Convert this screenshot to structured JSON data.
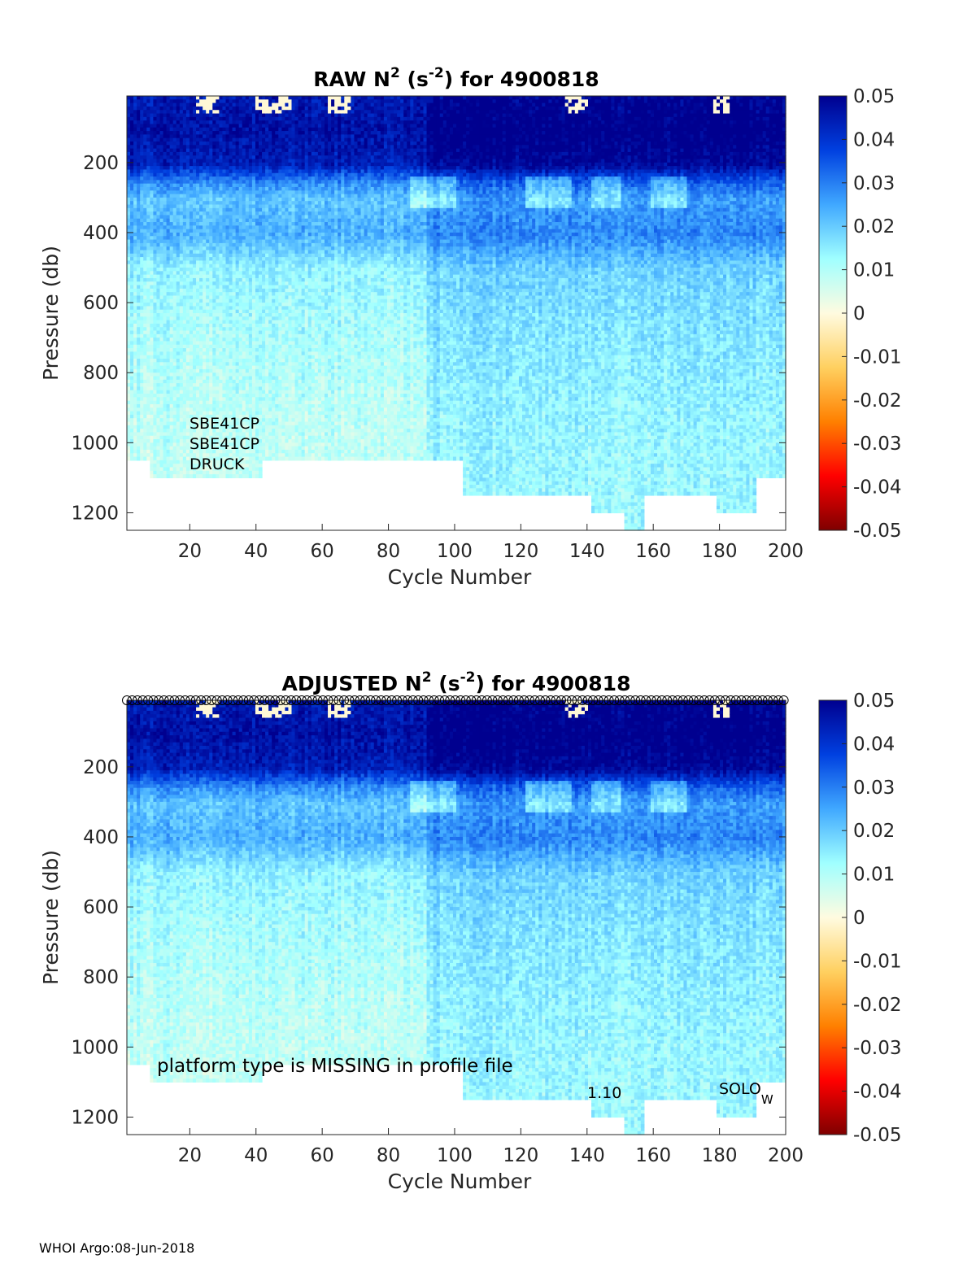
{
  "chart_data": [
    {
      "type": "heatmap",
      "title_prefix": "RAW N",
      "title_suffix": "for 4900818",
      "title_exp": "2",
      "title_unit_a": "(s",
      "title_unit_exp": "-2",
      "title_unit_b": ")",
      "xlabel": "Cycle Number",
      "ylabel": "Pressure (db)",
      "xlim": [
        1,
        200
      ],
      "ylim": [
        10,
        1250
      ],
      "xticks": [
        "20",
        "40",
        "60",
        "80",
        "100",
        "120",
        "140",
        "160",
        "180",
        "200"
      ],
      "yticks": [
        "200",
        "400",
        "600",
        "800",
        "1000",
        "1200"
      ],
      "colorbar": {
        "range": [
          -0.05,
          0.05
        ],
        "ticks": [
          "0.05",
          "0.04",
          "0.03",
          "0.02",
          "0.01",
          "0",
          "-0.01",
          "-0.02",
          "-0.03",
          "-0.04",
          "-0.05"
        ],
        "colormap": [
          "#7f0000",
          "#ff0000",
          "#ff8000",
          "#ffd060",
          "#fffbe0",
          "#a0ffff",
          "#40a8ff",
          "#0040e0",
          "#00008f"
        ]
      },
      "annotations": [
        "SBE41CP",
        "SBE41CP",
        "DRUCK"
      ],
      "depth_profile": [
        {
          "p": 10,
          "v": 0.046
        },
        {
          "p": 100,
          "v": 0.048
        },
        {
          "p": 200,
          "v": 0.045
        },
        {
          "p": 250,
          "v": 0.03
        },
        {
          "p": 300,
          "v": 0.022
        },
        {
          "p": 400,
          "v": 0.025
        },
        {
          "p": 500,
          "v": 0.015
        },
        {
          "p": 700,
          "v": 0.012
        },
        {
          "p": 900,
          "v": 0.01
        },
        {
          "p": 1100,
          "v": 0.009
        }
      ],
      "bottom_depth_by_cycle_segment": [
        {
          "from": 1,
          "to": 8,
          "p": 1050
        },
        {
          "from": 8,
          "to": 42,
          "p": 1100
        },
        {
          "from": 42,
          "to": 103,
          "p": 1050
        },
        {
          "from": 103,
          "to": 142,
          "p": 1150
        },
        {
          "from": 142,
          "to": 152,
          "p": 1200
        },
        {
          "from": 152,
          "to": 158,
          "p": 1250
        },
        {
          "from": 158,
          "to": 180,
          "p": 1150
        },
        {
          "from": 180,
          "to": 192,
          "p": 1200
        },
        {
          "from": 192,
          "to": 200,
          "p": 1100
        }
      ]
    },
    {
      "type": "heatmap",
      "title_prefix": "ADJUSTED N",
      "title_suffix": "for 4900818",
      "title_exp": "2",
      "title_unit_a": "(s",
      "title_unit_exp": "-2",
      "title_unit_b": ")",
      "xlabel": "Cycle Number",
      "ylabel": "Pressure (db)",
      "xlim": [
        1,
        200
      ],
      "ylim": [
        10,
        1250
      ],
      "xticks": [
        "20",
        "40",
        "60",
        "80",
        "100",
        "120",
        "140",
        "160",
        "180",
        "200"
      ],
      "yticks": [
        "200",
        "400",
        "600",
        "800",
        "1000",
        "1200"
      ],
      "colorbar": {
        "range": [
          -0.05,
          0.05
        ],
        "ticks": [
          "0.05",
          "0.04",
          "0.03",
          "0.02",
          "0.01",
          "0",
          "-0.01",
          "-0.02",
          "-0.03",
          "-0.04",
          "-0.05"
        ]
      },
      "annotations": {
        "platform": "platform type is MISSING in profile file",
        "version": "1.10",
        "solo": "SOLO",
        "solo_sub": "W"
      },
      "top_markers": "circles along surface at every cycle"
    }
  ],
  "footer": "WHOI Argo:08-Jun-2018"
}
